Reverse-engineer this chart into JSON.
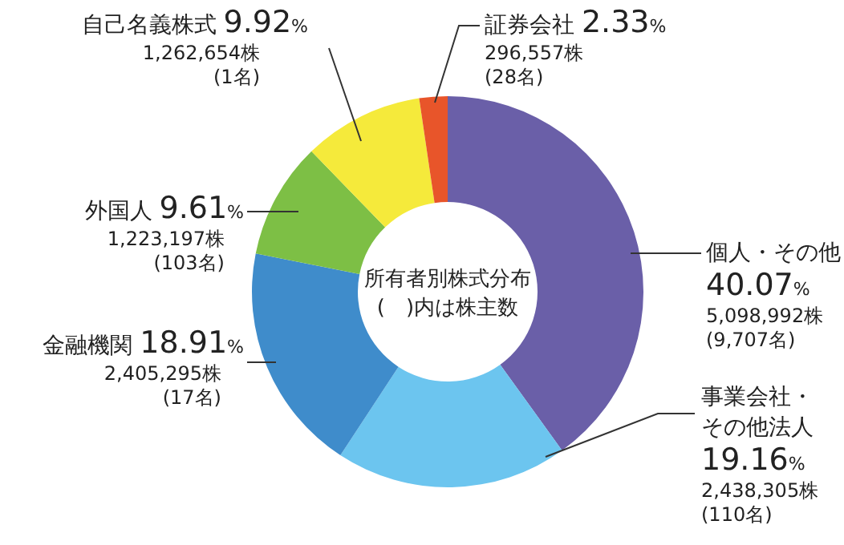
{
  "chart_data": {
    "type": "donut",
    "title": "所有者別株式分布",
    "subtitle": "(　)内は株主数",
    "categories": [
      "個人・その他",
      "事業会社・その他法人",
      "金融機関",
      "外国人",
      "自己名義株式",
      "証券会社"
    ],
    "values": [
      40.07,
      19.16,
      18.91,
      9.61,
      9.92,
      2.33
    ],
    "colors": [
      "#6a5fa8",
      "#6cc5ef",
      "#3f8ccb",
      "#7dbf45",
      "#f5ea3b",
      "#e8552a"
    ],
    "value_labels": [
      "40.07%",
      "19.16%",
      "18.91%",
      "9.61%",
      "9.92%",
      "2.33%"
    ],
    "annotations": [
      "5,098,992株\n(9,707名)",
      "2,438,305株\n(110名)",
      "2,405,295株\n(17名)",
      "1,223,197株\n(103名)",
      "1,262,654株\n(1名)",
      "296,557株\n(28名)"
    ]
  }
}
